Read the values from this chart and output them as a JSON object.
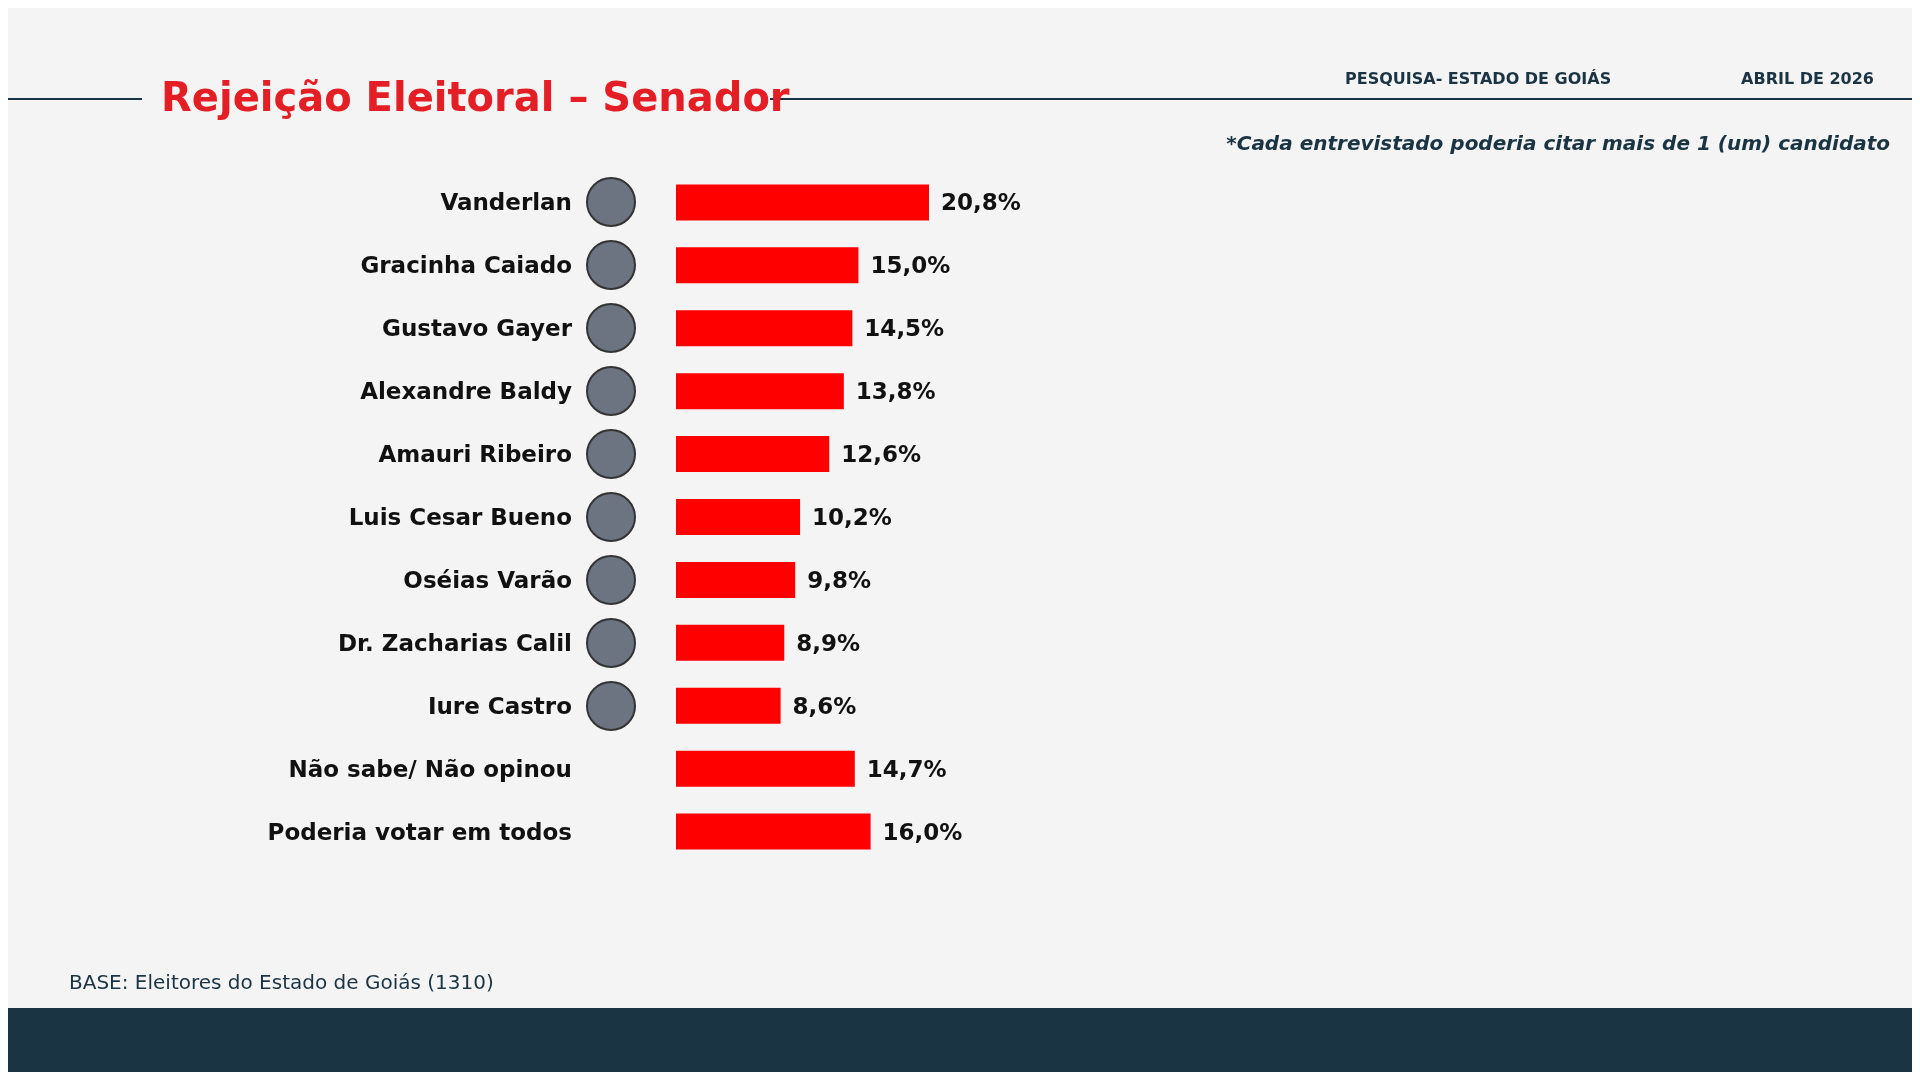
{
  "chart_data": {
    "type": "bar",
    "orientation": "horizontal",
    "title": "Rejeição Eleitoral – Senador",
    "categories": [
      "Vanderlan",
      "Gracinha Caiado",
      "Gustavo Gayer",
      "Alexandre Baldy",
      "Amauri Ribeiro",
      "Luis Cesar Bueno",
      "Oséias Varão",
      "Dr. Zacharias Calil",
      "Iure Castro",
      "Não sabe/ Não opinou",
      "Poderia votar em todos"
    ],
    "values": [
      20.8,
      15.0,
      14.5,
      13.8,
      12.6,
      10.2,
      9.8,
      8.9,
      8.6,
      14.7,
      16.0
    ],
    "value_labels": [
      "20,8%",
      "15,0%",
      "14,5%",
      "13,8%",
      "12,6%",
      "10,2%",
      "9,8%",
      "8,9%",
      "8,6%",
      "14,7%",
      "16,0%"
    ],
    "color": "#ff0000",
    "tick_labels": "y",
    "annotations": [
      "PESQUISA- ESTADO DE GOIÁS",
      "ABRIL DE 2026",
      "*Cada entrevistado poderia citar mais de 1 (um) candidato",
      "BASE: Eleitores do Estado de Goiás (1310)"
    ]
  }
}
